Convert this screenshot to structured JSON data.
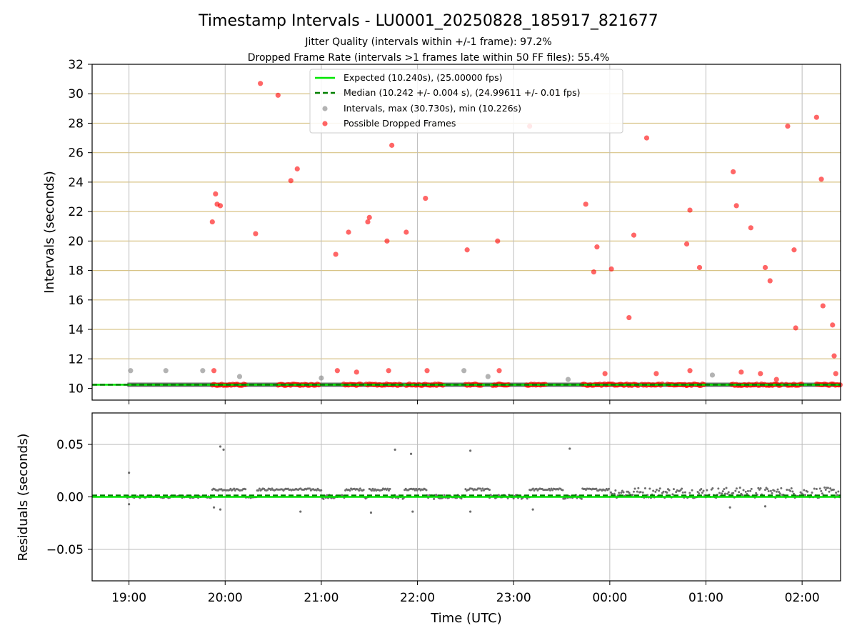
{
  "chart_data": [
    {
      "type": "scatter",
      "title": "Timestamp Intervals - LU0001_20250828_185917_821677",
      "subtitle_lines": [
        "Jitter Quality (intervals within +/-1 frame): 97.2%",
        "Dropped Frame Rate (intervals >1 frames late within 50 FF files): 55.4%"
      ],
      "xlabel": "",
      "ylabel": "Intervals (seconds)",
      "ylim": [
        9.2,
        32
      ],
      "yticks": [
        10,
        12,
        14,
        16,
        18,
        20,
        22,
        24,
        26,
        28,
        30,
        32
      ],
      "xlim": [
        "18:37",
        "02:24"
      ],
      "grid": true,
      "legend_position": "top-center",
      "legend": [
        {
          "label": "Expected (10.240s), (25.00000 fps)",
          "color": "#00e600",
          "style": "solid-line"
        },
        {
          "label": "Median (10.242 +/- 0.004 s), (24.99611 +/- 0.01 fps)",
          "color": "#008000",
          "style": "dashed-line"
        },
        {
          "label": "Intervals, max (30.730s), min (10.226s)",
          "color": "#808080",
          "style": "marker"
        },
        {
          "label": "Possible Dropped Frames",
          "color": "#ff0000",
          "style": "marker"
        }
      ],
      "expected_interval": 10.24,
      "median_interval": 10.242,
      "normal_interval_segments": [
        [
          "18:59",
          "20:15"
        ],
        [
          "20:15",
          "23:50"
        ],
        [
          "23:50",
          "02:24"
        ]
      ],
      "dropped_frame_clusters": [
        [
          "19:52",
          "20:13"
        ],
        [
          "20:33",
          "20:59"
        ],
        [
          "21:14",
          "21:25"
        ],
        [
          "21:28",
          "21:50"
        ],
        [
          "21:53",
          "22:05"
        ],
        [
          "22:06",
          "22:16"
        ],
        [
          "22:30",
          "22:40"
        ],
        [
          "22:47",
          "22:57"
        ],
        [
          "23:08",
          "23:20"
        ],
        [
          "23:43",
          "23:59"
        ],
        [
          "23:59",
          "00:18"
        ],
        [
          "00:20",
          "00:33"
        ],
        [
          "00:36",
          "00:48"
        ],
        [
          "00:48",
          "00:59"
        ],
        [
          "01:16",
          "01:48"
        ],
        [
          "01:50",
          "02:00"
        ],
        [
          "02:09",
          "02:24"
        ]
      ],
      "gray_points": [
        {
          "x": "19:01",
          "y": 11.2
        },
        {
          "x": "19:23",
          "y": 11.2
        },
        {
          "x": "19:46",
          "y": 11.2
        },
        {
          "x": "20:09",
          "y": 10.8
        },
        {
          "x": "21:00",
          "y": 10.7
        },
        {
          "x": "22:29",
          "y": 11.2
        },
        {
          "x": "22:44",
          "y": 10.8
        },
        {
          "x": "23:34",
          "y": 10.6
        },
        {
          "x": "01:04",
          "y": 10.9
        }
      ],
      "red_points": [
        {
          "x": "19:52",
          "y": 21.3
        },
        {
          "x": "19:53",
          "y": 11.2
        },
        {
          "x": "19:54",
          "y": 23.2
        },
        {
          "x": "19:55",
          "y": 22.5
        },
        {
          "x": "19:57",
          "y": 22.4
        },
        {
          "x": "20:19",
          "y": 20.5
        },
        {
          "x": "20:22",
          "y": 30.7
        },
        {
          "x": "20:33",
          "y": 29.9
        },
        {
          "x": "20:41",
          "y": 24.1
        },
        {
          "x": "20:45",
          "y": 24.9
        },
        {
          "x": "21:09",
          "y": 19.1
        },
        {
          "x": "21:10",
          "y": 11.2
        },
        {
          "x": "21:17",
          "y": 20.6
        },
        {
          "x": "21:22",
          "y": 11.1
        },
        {
          "x": "21:29",
          "y": 21.3
        },
        {
          "x": "21:30",
          "y": 21.6
        },
        {
          "x": "21:41",
          "y": 20.0
        },
        {
          "x": "21:42",
          "y": 11.2
        },
        {
          "x": "21:44",
          "y": 26.5
        },
        {
          "x": "21:53",
          "y": 20.6
        },
        {
          "x": "22:05",
          "y": 22.9
        },
        {
          "x": "22:06",
          "y": 11.2
        },
        {
          "x": "22:31",
          "y": 19.4
        },
        {
          "x": "22:50",
          "y": 20.0
        },
        {
          "x": "22:51",
          "y": 11.2
        },
        {
          "x": "23:10",
          "y": 27.8
        },
        {
          "x": "23:45",
          "y": 22.5
        },
        {
          "x": "23:50",
          "y": 17.9
        },
        {
          "x": "23:52",
          "y": 19.6
        },
        {
          "x": "23:57",
          "y": 11.0
        },
        {
          "x": "00:01",
          "y": 18.1
        },
        {
          "x": "00:12",
          "y": 14.8
        },
        {
          "x": "00:15",
          "y": 20.4
        },
        {
          "x": "00:23",
          "y": 27.0
        },
        {
          "x": "00:29",
          "y": 11.0
        },
        {
          "x": "00:48",
          "y": 19.8
        },
        {
          "x": "00:50",
          "y": 22.1
        },
        {
          "x": "00:50",
          "y": 11.2
        },
        {
          "x": "00:56",
          "y": 18.2
        },
        {
          "x": "01:17",
          "y": 24.7
        },
        {
          "x": "01:19",
          "y": 22.4
        },
        {
          "x": "01:22",
          "y": 11.1
        },
        {
          "x": "01:28",
          "y": 20.9
        },
        {
          "x": "01:34",
          "y": 11.0
        },
        {
          "x": "01:37",
          "y": 18.2
        },
        {
          "x": "01:40",
          "y": 17.3
        },
        {
          "x": "01:44",
          "y": 10.6
        },
        {
          "x": "01:51",
          "y": 27.8
        },
        {
          "x": "01:55",
          "y": 19.4
        },
        {
          "x": "01:56",
          "y": 14.1
        },
        {
          "x": "02:09",
          "y": 28.4
        },
        {
          "x": "02:12",
          "y": 24.2
        },
        {
          "x": "02:13",
          "y": 15.6
        },
        {
          "x": "02:19",
          "y": 14.3
        },
        {
          "x": "02:20",
          "y": 12.2
        },
        {
          "x": "02:21",
          "y": 11.0
        }
      ]
    },
    {
      "type": "scatter",
      "xlabel": "Time (UTC)",
      "ylabel": "Residuals (seconds)",
      "ylim": [
        -0.08,
        0.08
      ],
      "yticks": [
        -0.05,
        0.0,
        0.05
      ],
      "ytick_labels": [
        "−0.05",
        "0.00",
        "0.05"
      ],
      "xlim": [
        "18:37",
        "02:24"
      ],
      "xticks": [
        "19:00",
        "20:00",
        "21:00",
        "22:00",
        "23:00",
        "00:00",
        "01:00",
        "02:00"
      ],
      "grid": true,
      "expected_residual": 0.0,
      "median_residual": 0.0015,
      "outliers": [
        {
          "x": "19:00",
          "y": 0.023
        },
        {
          "x": "19:57",
          "y": 0.048
        },
        {
          "x": "19:59",
          "y": 0.045
        },
        {
          "x": "21:46",
          "y": 0.045
        },
        {
          "x": "21:56",
          "y": 0.041
        },
        {
          "x": "22:33",
          "y": 0.044
        },
        {
          "x": "23:35",
          "y": 0.046
        },
        {
          "x": "19:00",
          "y": -0.007
        },
        {
          "x": "19:53",
          "y": -0.01
        },
        {
          "x": "19:57",
          "y": -0.012
        },
        {
          "x": "20:47",
          "y": -0.014
        },
        {
          "x": "21:31",
          "y": -0.015
        },
        {
          "x": "21:57",
          "y": -0.014
        },
        {
          "x": "22:33",
          "y": -0.014
        },
        {
          "x": "23:12",
          "y": -0.012
        },
        {
          "x": "01:15",
          "y": -0.01
        },
        {
          "x": "01:37",
          "y": -0.009
        }
      ],
      "bands": [
        {
          "start": "18:59",
          "end": "19:52",
          "mean": 0.0,
          "spread": 0.001
        },
        {
          "start": "19:52",
          "end": "20:13",
          "mean": 0.007,
          "spread": 0.001
        },
        {
          "start": "20:13",
          "end": "20:20",
          "mean": 0.0,
          "spread": 0.001
        },
        {
          "start": "20:20",
          "end": "21:00",
          "mean": 0.007,
          "spread": 0.001
        },
        {
          "start": "21:00",
          "end": "21:15",
          "mean": 0.0,
          "spread": 0.002
        },
        {
          "start": "21:15",
          "end": "21:27",
          "mean": 0.007,
          "spread": 0.001
        },
        {
          "start": "21:27",
          "end": "21:30",
          "mean": 0.0,
          "spread": 0.002
        },
        {
          "start": "21:30",
          "end": "21:43",
          "mean": 0.007,
          "spread": 0.001
        },
        {
          "start": "21:43",
          "end": "21:52",
          "mean": 0.0,
          "spread": 0.002
        },
        {
          "start": "21:52",
          "end": "22:06",
          "mean": 0.007,
          "spread": 0.001
        },
        {
          "start": "22:06",
          "end": "22:30",
          "mean": 0.0,
          "spread": 0.002
        },
        {
          "start": "22:30",
          "end": "22:45",
          "mean": 0.007,
          "spread": 0.001
        },
        {
          "start": "22:45",
          "end": "23:10",
          "mean": 0.0,
          "spread": 0.002
        },
        {
          "start": "23:10",
          "end": "23:31",
          "mean": 0.007,
          "spread": 0.001
        },
        {
          "start": "23:31",
          "end": "23:43",
          "mean": 0.0,
          "spread": 0.002
        },
        {
          "start": "23:43",
          "end": "00:00",
          "mean": 0.007,
          "spread": 0.001
        },
        {
          "start": "00:00",
          "end": "02:24",
          "mean": 0.004,
          "spread": 0.005
        }
      ]
    }
  ]
}
